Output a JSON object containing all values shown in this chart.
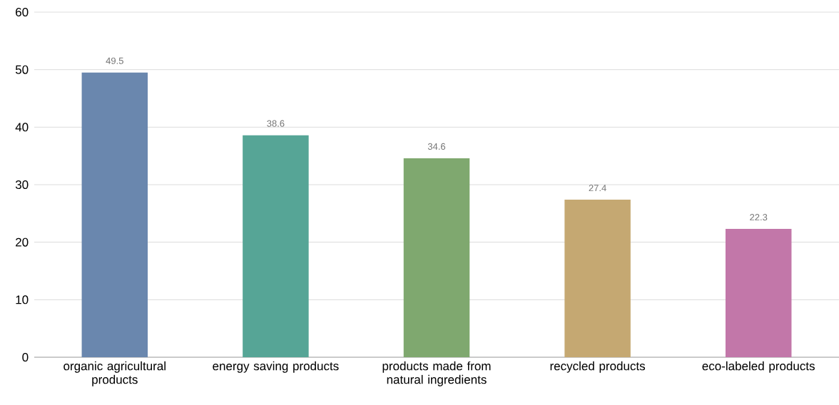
{
  "chart_data": {
    "type": "bar",
    "categories": [
      "organic agricultural products",
      "energy saving products",
      "products made from natural ingredients",
      "recycled products",
      "eco-labeled products"
    ],
    "values": [
      49.5,
      38.6,
      34.6,
      27.4,
      22.3
    ],
    "colors": [
      "#6a87ae",
      "#56a596",
      "#7fa86f",
      "#c5a872",
      "#c277a9"
    ],
    "ylim": [
      0,
      60
    ],
    "yticks": [
      0,
      10,
      20,
      30,
      40,
      50,
      60
    ],
    "grid": "y",
    "data_labels": true
  }
}
